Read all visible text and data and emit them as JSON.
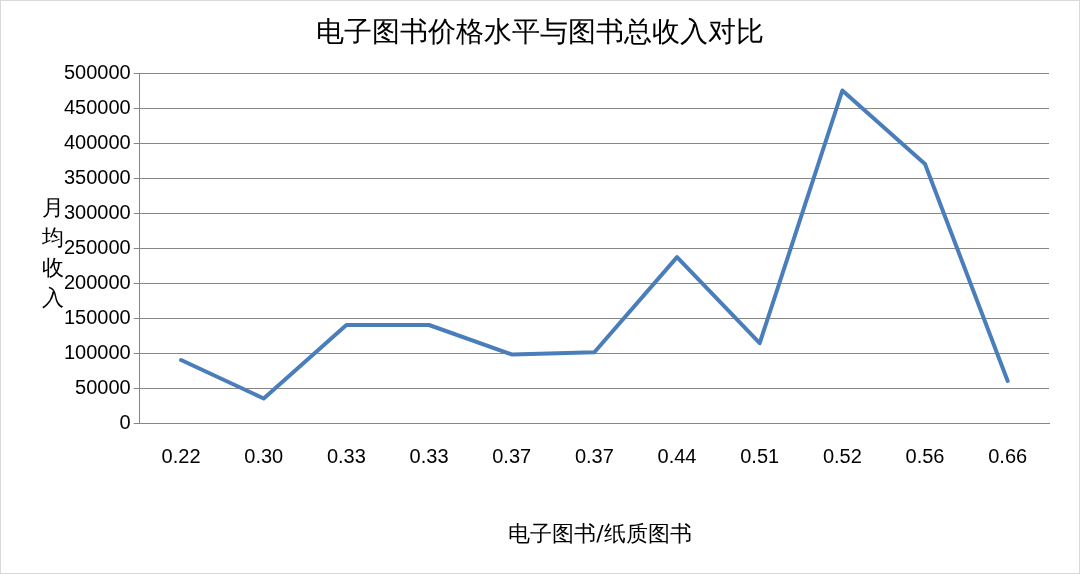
{
  "chart_data": {
    "type": "line",
    "title": "电子图书价格水平与图书总收入对比",
    "xlabel": "电子图书/纸质图书",
    "ylabel": "月均收入",
    "categories": [
      "0.22",
      "0.30",
      "0.33",
      "0.33",
      "0.37",
      "0.37",
      "0.44",
      "0.51",
      "0.52",
      "0.56",
      "0.66"
    ],
    "series": [
      {
        "color": "#4a7ebb",
        "values": [
          90000,
          35000,
          140000,
          140000,
          98000,
          101000,
          237000,
          114000,
          475000,
          370000,
          60000
        ]
      }
    ],
    "ylim": [
      0,
      500000
    ],
    "yticks": [
      0,
      50000,
      100000,
      150000,
      200000,
      250000,
      300000,
      350000,
      400000,
      450000,
      500000
    ],
    "grid": "y",
    "legend": false,
    "marker": "none",
    "line_style": "solid"
  }
}
